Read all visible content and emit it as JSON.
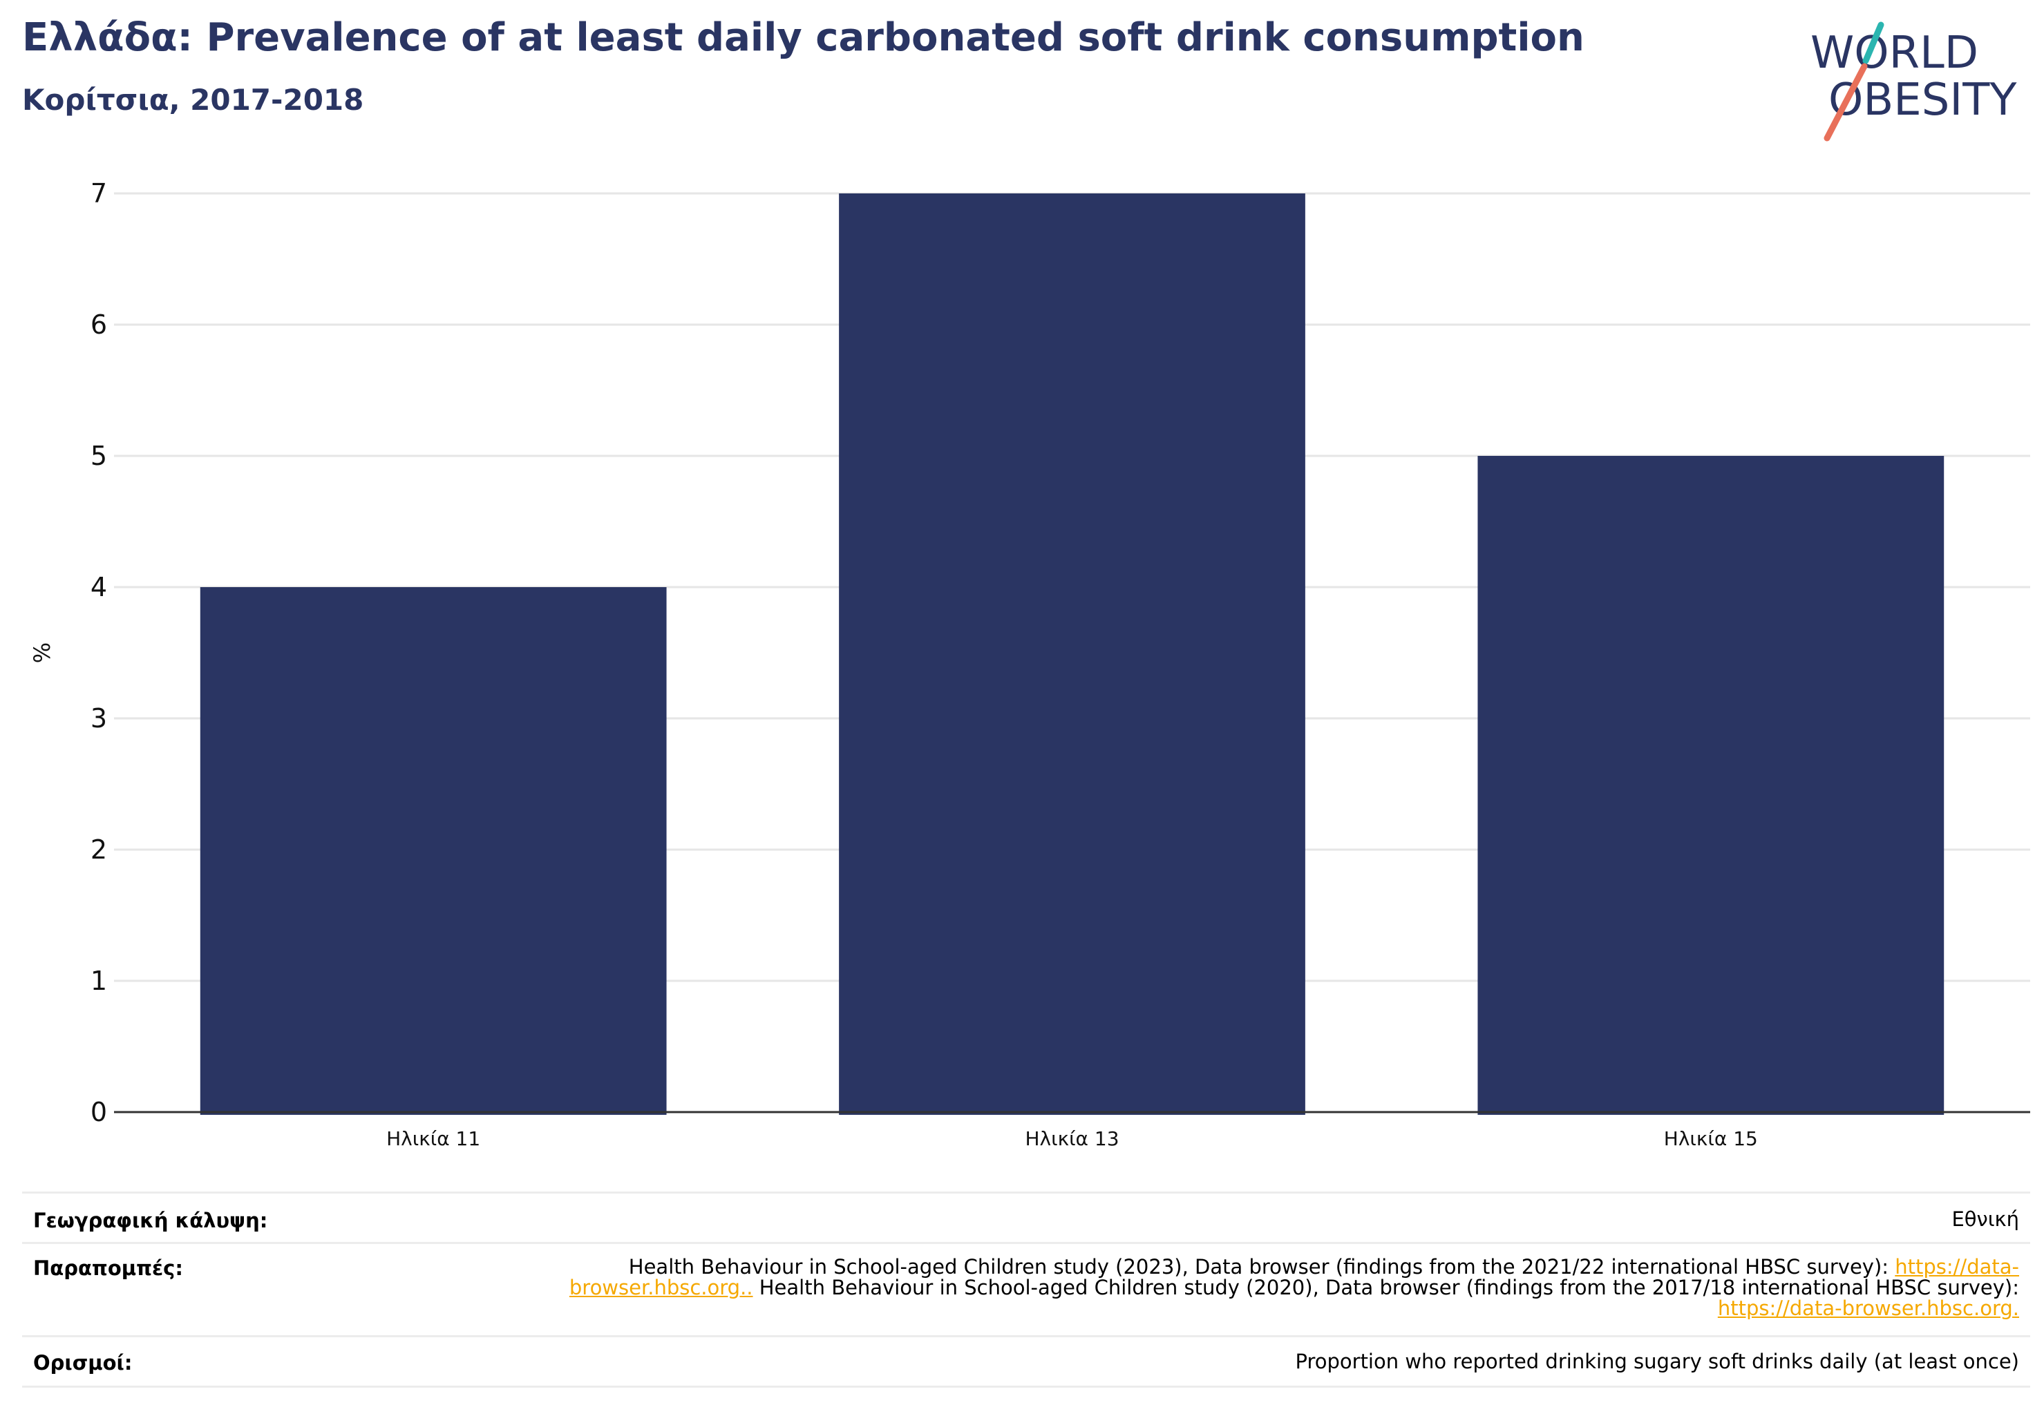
{
  "header": {
    "title": "Ελλάδα: Prevalence of at least daily carbonated soft drink consumption",
    "subtitle": "Κορίτσια, 2017-2018"
  },
  "logo": {
    "line1": "WORLD",
    "line2": "OBESITY",
    "colors": {
      "text": "#2a3563",
      "slash_top": "#2bb5b0",
      "slash_bottom": "#e8705a"
    }
  },
  "chart_data": {
    "type": "bar",
    "title": "Ελλάδα: Prevalence of at least daily carbonated soft drink consumption",
    "subtitle": "Κορίτσια, 2017-2018",
    "categories": [
      "Ηλικία 11",
      "Ηλικία 13",
      "Ηλικία 15"
    ],
    "values": [
      4,
      7,
      5
    ],
    "xlabel": "",
    "ylabel": "%",
    "ylim": [
      0,
      7
    ],
    "yticks": [
      "0",
      "1",
      "2",
      "3",
      "4",
      "5",
      "6",
      "7"
    ],
    "grid": true,
    "legend": "none",
    "bar_color": "#2a3563"
  },
  "info": {
    "coverage_label": "Γεωγραφική κάλυψη:",
    "coverage_value": "Εθνική",
    "references_label": "Παραπομπές:",
    "ref1_text": "Health Behaviour in School-aged Children study (2023), Data browser (findings from the 2021/22 international HBSC survey): ",
    "ref1_link": "https://data-browser.hbsc.org..",
    "ref2_text": " Health Behaviour in School-aged Children study (2020), Data browser (findings from the 2017/18 international HBSC survey): ",
    "ref2_link": "https://data-browser.hbsc.org.",
    "definitions_label": "Ορισμοί:",
    "definitions_value": "Proportion who reported drinking sugary soft drinks daily (at least once)"
  }
}
